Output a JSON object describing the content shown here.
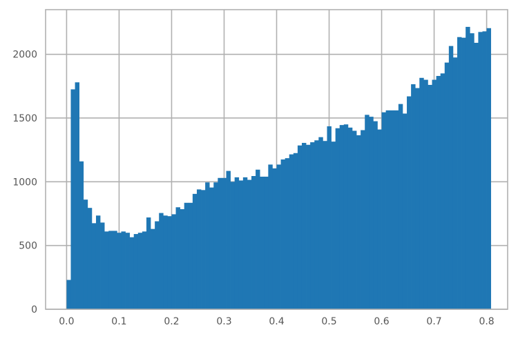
{
  "chart_data": {
    "type": "bar",
    "subtype": "histogram",
    "title": "",
    "xlabel": "",
    "ylabel": "",
    "xlim": [
      -0.04,
      0.84
    ],
    "ylim": [
      0,
      2350
    ],
    "grid": true,
    "color": "#1f77b4",
    "bin_start": 0.0,
    "bin_width": 0.008,
    "x_ticks": [
      0.0,
      0.1,
      0.2,
      0.3,
      0.4,
      0.5,
      0.6,
      0.7,
      0.8
    ],
    "x_tick_labels": [
      "0.0",
      "0.1",
      "0.2",
      "0.3",
      "0.4",
      "0.5",
      "0.6",
      "0.7",
      "0.8"
    ],
    "y_ticks": [
      0,
      500,
      1000,
      1500,
      2000
    ],
    "y_tick_labels": [
      "0",
      "500",
      "1000",
      "1500",
      "2000"
    ],
    "values": [
      230,
      1725,
      1780,
      1160,
      860,
      795,
      675,
      735,
      680,
      610,
      615,
      615,
      600,
      610,
      600,
      565,
      590,
      600,
      610,
      720,
      630,
      690,
      755,
      735,
      730,
      745,
      800,
      785,
      835,
      835,
      905,
      940,
      935,
      995,
      955,
      995,
      1030,
      1030,
      1085,
      1000,
      1035,
      1010,
      1035,
      1015,
      1045,
      1095,
      1040,
      1040,
      1135,
      1105,
      1135,
      1175,
      1185,
      1215,
      1225,
      1285,
      1305,
      1290,
      1310,
      1325,
      1350,
      1320,
      1435,
      1315,
      1420,
      1445,
      1450,
      1425,
      1400,
      1365,
      1405,
      1525,
      1510,
      1475,
      1410,
      1545,
      1560,
      1560,
      1560,
      1610,
      1535,
      1670,
      1765,
      1735,
      1815,
      1800,
      1760,
      1800,
      1830,
      1850,
      1935,
      2065,
      1975,
      2135,
      2130,
      2215,
      2165,
      2090,
      2175,
      2180,
      2205
    ]
  }
}
